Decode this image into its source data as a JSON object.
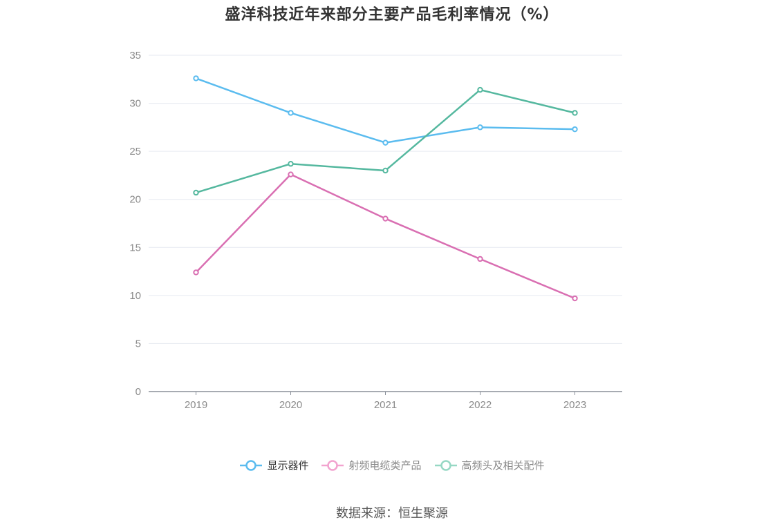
{
  "chart_data": {
    "type": "line",
    "title": "盛洋科技近年来部分主要产品毛利率情况（%）",
    "x": [
      "2019",
      "2020",
      "2021",
      "2022",
      "2023"
    ],
    "y_ticks": [
      "0",
      "5",
      "10",
      "15",
      "20",
      "25",
      "30",
      "35"
    ],
    "ylim": [
      0,
      35
    ],
    "grid": true,
    "legend_position": "bottom",
    "series": [
      {
        "name": "显示器件",
        "color": "#5bbcef",
        "values": [
          32.6,
          29.0,
          25.9,
          27.5,
          27.3
        ]
      },
      {
        "name": "射频电缆类产品",
        "color": "#d96fb2",
        "values": [
          12.4,
          22.6,
          18.0,
          13.8,
          9.7
        ]
      },
      {
        "name": "高频头及相关配件",
        "color": "#55b89f",
        "values": [
          20.7,
          23.7,
          23.0,
          31.4,
          29.0
        ]
      }
    ]
  },
  "legend": [
    {
      "label": "显示器件",
      "color": "#5bbcef",
      "active": true
    },
    {
      "label": "射频电缆类产品",
      "color": "#f2a3cf",
      "active": false
    },
    {
      "label": "高频头及相关配件",
      "color": "#96d8c4",
      "active": false
    }
  ],
  "source": "数据来源：恒生聚源"
}
